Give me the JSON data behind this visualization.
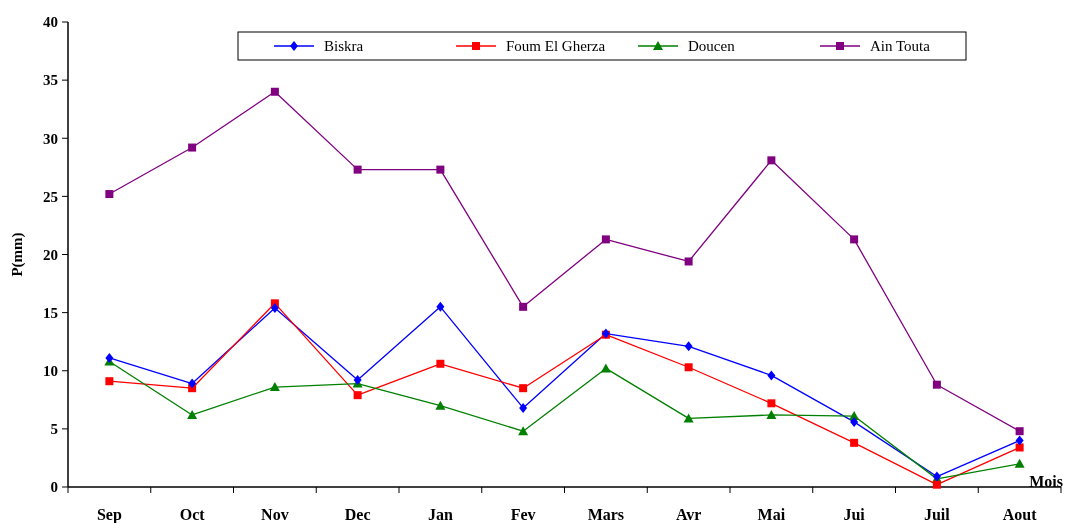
{
  "chart_data": {
    "type": "line",
    "xlabel": "Mois",
    "ylabel": "P(mm)",
    "categories": [
      "Sep",
      "Oct",
      "Nov",
      "Dec",
      "Jan",
      "Fev",
      "Mars",
      "Avr",
      "Mai",
      "Jui",
      "Juil",
      "Aout"
    ],
    "series": [
      {
        "name": "Biskra",
        "color": "#0000ff",
        "marker": "diamond",
        "values": [
          11.1,
          8.9,
          15.4,
          9.2,
          15.5,
          6.8,
          13.2,
          12.1,
          9.6,
          5.6,
          0.9,
          4.0
        ]
      },
      {
        "name": "Foum El Gherza",
        "color": "#ff0000",
        "marker": "square",
        "values": [
          9.1,
          8.5,
          15.8,
          7.9,
          10.6,
          8.5,
          13.1,
          10.3,
          7.2,
          3.8,
          0.2,
          3.4
        ]
      },
      {
        "name": "Doucen",
        "color": "#008000",
        "marker": "triangle",
        "values": [
          10.8,
          6.2,
          8.6,
          8.9,
          7.0,
          4.8,
          10.2,
          5.9,
          6.2,
          6.1,
          0.7,
          2.0
        ]
      },
      {
        "name": "Ain Touta",
        "color": "#800080",
        "marker": "square",
        "values": [
          25.2,
          29.2,
          34.0,
          27.3,
          27.3,
          15.5,
          21.3,
          19.4,
          28.1,
          21.3,
          8.8,
          4.8
        ]
      }
    ],
    "ylim": [
      0,
      40
    ],
    "yticks": [
      0,
      5,
      10,
      15,
      20,
      25,
      30,
      35,
      40
    ],
    "grid": false,
    "legend": "top"
  }
}
